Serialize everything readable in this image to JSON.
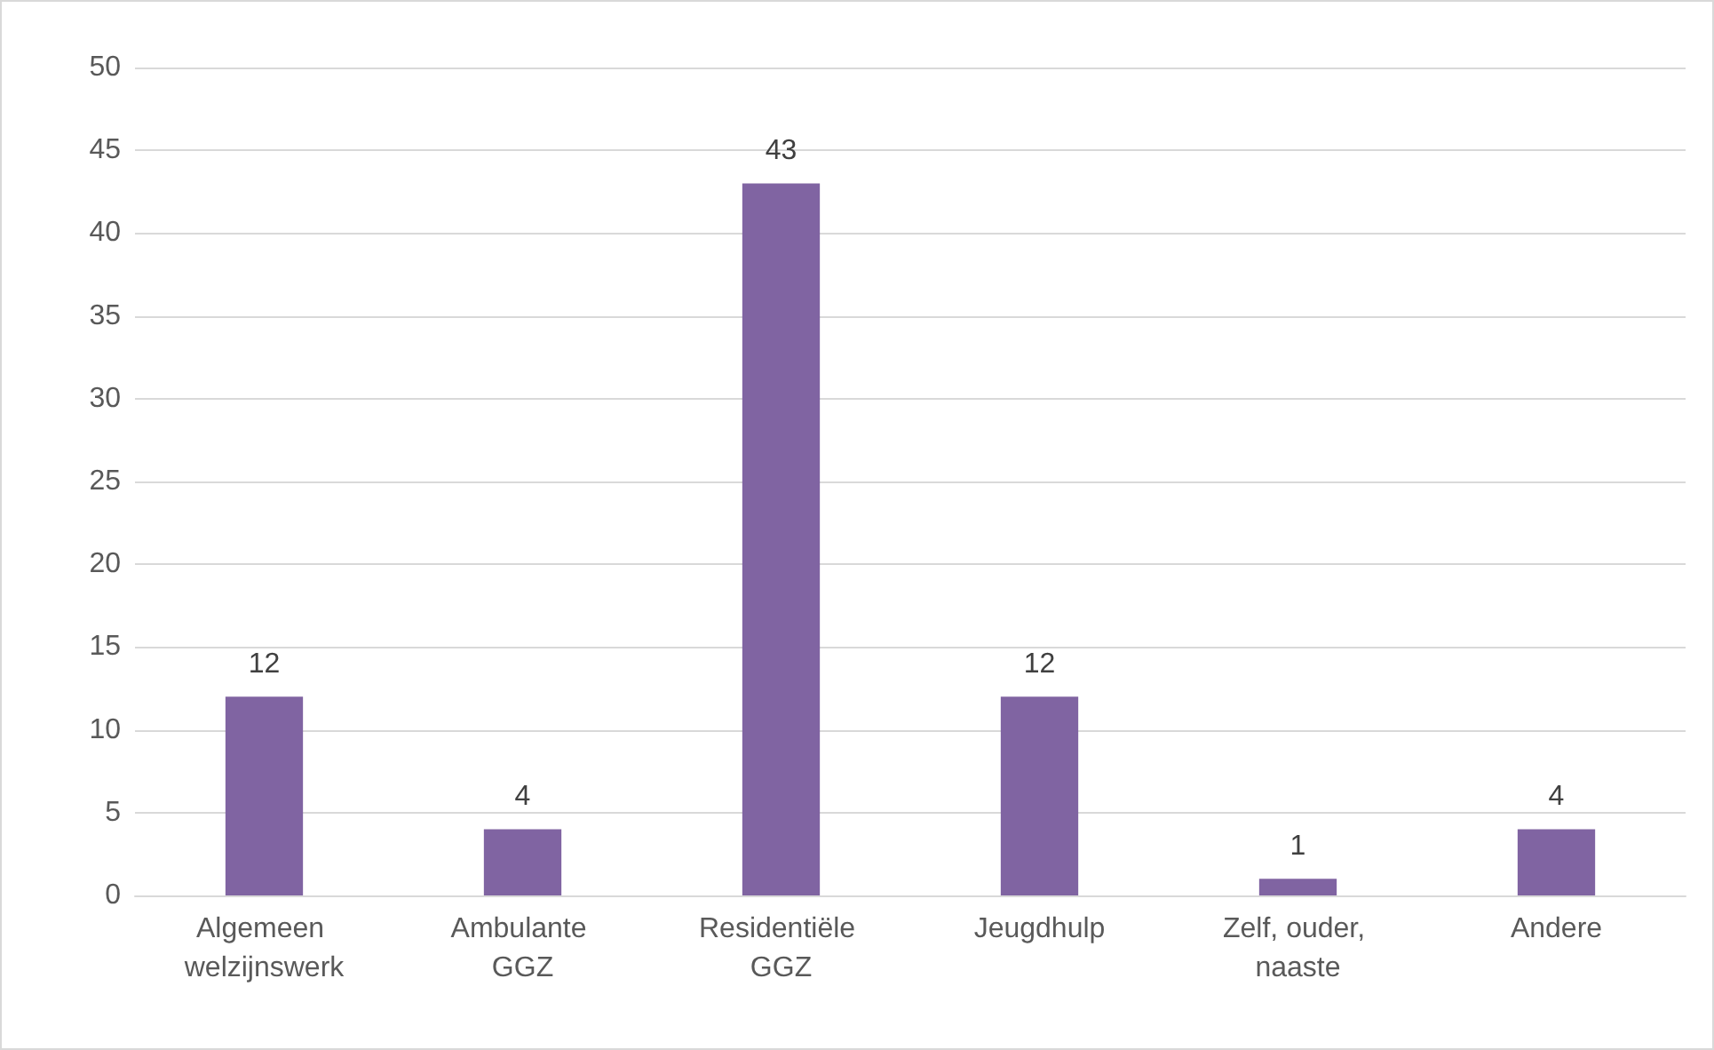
{
  "chart_data": {
    "type": "bar",
    "categories": [
      "Algemeen welzijnswerk",
      "Ambulante GGZ",
      "Residentiële GGZ",
      "Jeugdhulp",
      "Zelf, ouder, naaste",
      "Andere"
    ],
    "values": [
      12,
      4,
      43,
      12,
      1,
      4
    ],
    "color": "#8064a2",
    "ylim": [
      0,
      50
    ],
    "yticks": [
      0,
      5,
      10,
      15,
      20,
      25,
      30,
      35,
      40,
      45,
      50
    ],
    "grid": "y",
    "data_labels": true
  }
}
